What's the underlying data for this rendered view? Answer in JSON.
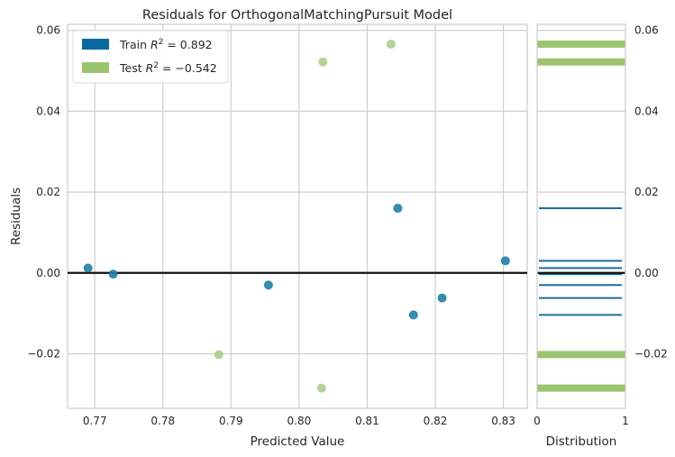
{
  "chart_data": {
    "type": "scatter",
    "title": "Residuals for OrthogonalMatchingPursuit Model",
    "xlabel": "Predicted Value",
    "ylabel": "Residuals",
    "xlim": [
      0.766,
      0.8335
    ],
    "ylim": [
      -0.0335,
      0.0615
    ],
    "x_ticks": [
      0.77,
      0.78,
      0.79,
      0.8,
      0.81,
      0.82,
      0.83
    ],
    "x_tick_labels": [
      "0.77",
      "0.78",
      "0.79",
      "0.80",
      "0.81",
      "0.82",
      "0.83"
    ],
    "y_ticks": [
      -0.02,
      0.0,
      0.02,
      0.04,
      0.06
    ],
    "y_tick_labels": [
      "−0.02",
      "0.00",
      "0.02",
      "0.04",
      "0.06"
    ],
    "grid": true,
    "legend_position": "top-left",
    "zero_line": 0,
    "series": [
      {
        "name": "Train",
        "legend_label": "Train",
        "legend_stat": "= 0.892",
        "color": "#1f7fa8",
        "legend_color": "#0868a0",
        "points": [
          {
            "x": 0.769,
            "y": 0.0012
          },
          {
            "x": 0.7727,
            "y": -0.0003
          },
          {
            "x": 0.7955,
            "y": -0.003
          },
          {
            "x": 0.8145,
            "y": 0.016
          },
          {
            "x": 0.8168,
            "y": -0.0104
          },
          {
            "x": 0.821,
            "y": -0.0062
          },
          {
            "x": 0.8303,
            "y": 0.003
          }
        ]
      },
      {
        "name": "Test",
        "legend_label": "Test",
        "legend_stat": "= −0.542",
        "color": "#a9cf8a",
        "legend_color": "#9bc46f",
        "points": [
          {
            "x": 0.7882,
            "y": -0.0202
          },
          {
            "x": 0.8033,
            "y": -0.0285
          },
          {
            "x": 0.8035,
            "y": 0.0522
          },
          {
            "x": 0.8135,
            "y": 0.0566
          }
        ]
      }
    ],
    "distribution": {
      "xlabel": "Distribution",
      "x_ticks": [
        "0",
        "1"
      ],
      "y_tick_labels": [
        "−0.02",
        "0.00",
        "0.02",
        "0.04",
        "0.06"
      ],
      "train_lines": [
        0.016,
        0.003,
        0.0012,
        -0.0003,
        -0.003,
        -0.0062,
        -0.0104
      ],
      "test_bars": [
        0.0566,
        0.0522,
        -0.0202,
        -0.0285
      ],
      "train_color": "#1a6f95",
      "test_color": "#9bc46f"
    }
  }
}
